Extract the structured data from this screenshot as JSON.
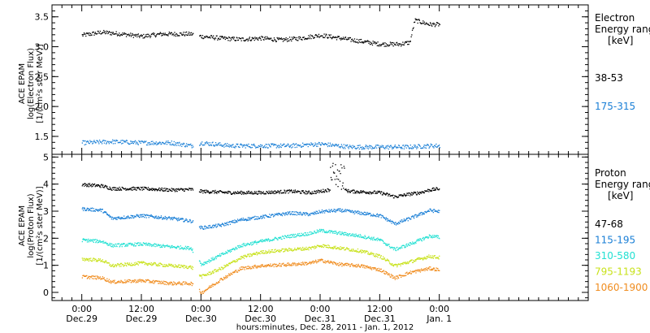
{
  "chart_data": {
    "type": "scatter",
    "x_axis": {
      "label": "hours:minutes, Dec. 28, 2011 - Jan. 1, 2012",
      "range_hours": [
        -6,
        102
      ],
      "ticks": [
        {
          "hours": 0,
          "time": "0:00",
          "date": "Dec.29"
        },
        {
          "hours": 12,
          "time": "12:00",
          "date": "Dec.29"
        },
        {
          "hours": 24,
          "time": "0:00",
          "date": "Dec.30"
        },
        {
          "hours": 36,
          "time": "12:00",
          "date": "Dec.30"
        },
        {
          "hours": 48,
          "time": "0:00",
          "date": "Dec.31"
        },
        {
          "hours": 60,
          "time": "12:00",
          "date": "Dec.31"
        },
        {
          "hours": 72,
          "time": "0:00",
          "date": "Jan. 1"
        }
      ],
      "data_end_hours": 90
    },
    "panels": [
      {
        "name": "electron",
        "ylabel": [
          "ACE EPAM",
          "log(Electron Flux)",
          "[1/(cm²s ster MeV)]"
        ],
        "ylim": [
          1.2,
          3.7
        ],
        "yticks": [
          {
            "value": 1.5,
            "label": "1.5"
          },
          {
            "value": 2.0,
            "label": "2.0"
          },
          {
            "value": 2.5,
            "label": "2.5"
          },
          {
            "value": 3.0,
            "label": "3.0"
          },
          {
            "value": 3.5,
            "label": "3.5"
          }
        ],
        "legend_title": [
          "Electron",
          "Energy ranges",
          "[keV]"
        ],
        "series": [
          {
            "name": "38-53",
            "color": "#000000",
            "knots": [
              [
                0,
                3.2
              ],
              [
                4,
                3.25
              ],
              [
                8,
                3.22
              ],
              [
                12,
                3.18
              ],
              [
                16,
                3.22
              ],
              [
                20,
                3.22
              ],
              [
                22,
                3.22
              ],
              [
                24,
                3.18
              ],
              [
                28,
                3.15
              ],
              [
                32,
                3.13
              ],
              [
                36,
                3.15
              ],
              [
                40,
                3.12
              ],
              [
                44,
                3.15
              ],
              [
                48,
                3.2
              ],
              [
                52,
                3.15
              ],
              [
                56,
                3.1
              ],
              [
                60,
                3.05
              ],
              [
                64,
                3.05
              ],
              [
                66,
                3.08
              ],
              [
                67,
                3.45
              ],
              [
                70,
                3.38
              ]
            ]
          },
          {
            "name": "175-315",
            "color": "#1a7fd6",
            "knots": [
              [
                0,
                1.4
              ],
              [
                6,
                1.42
              ],
              [
                12,
                1.4
              ],
              [
                18,
                1.4
              ],
              [
                22,
                1.35
              ],
              [
                24,
                1.4
              ],
              [
                30,
                1.35
              ],
              [
                36,
                1.35
              ],
              [
                42,
                1.35
              ],
              [
                48,
                1.38
              ],
              [
                54,
                1.33
              ],
              [
                60,
                1.33
              ],
              [
                66,
                1.33
              ],
              [
                70,
                1.35
              ]
            ]
          }
        ]
      },
      {
        "name": "proton",
        "ylabel": [
          "ACE EPAM",
          "log(Proton Flux)",
          "[1/(cm²s ster MeV)]"
        ],
        "ylim": [
          -0.3,
          5.1
        ],
        "yticks": [
          {
            "value": 0,
            "label": "0"
          },
          {
            "value": 1,
            "label": "1"
          },
          {
            "value": 2,
            "label": "2"
          },
          {
            "value": 3,
            "label": "3"
          },
          {
            "value": 4,
            "label": "4"
          },
          {
            "value": 5,
            "label": "5"
          }
        ],
        "legend_title": [
          "Proton",
          "Energy ranges",
          "[keV]"
        ],
        "series": [
          {
            "name": "47-68",
            "color": "#000000",
            "knots": [
              [
                0,
                4.0
              ],
              [
                4,
                3.95
              ],
              [
                6,
                3.85
              ],
              [
                12,
                3.85
              ],
              [
                18,
                3.8
              ],
              [
                22,
                3.82
              ],
              [
                24,
                3.75
              ],
              [
                30,
                3.7
              ],
              [
                36,
                3.7
              ],
              [
                42,
                3.75
              ],
              [
                46,
                3.7
              ],
              [
                48,
                3.75
              ],
              [
                51,
                3.85
              ],
              [
                54,
                3.75
              ],
              [
                60,
                3.7
              ],
              [
                63,
                3.55
              ],
              [
                66,
                3.65
              ],
              [
                68,
                3.7
              ],
              [
                70,
                3.8
              ],
              [
                72,
                3.85
              ]
            ]
          },
          {
            "name": "115-195",
            "color": "#1a7fd6",
            "knots": [
              [
                0,
                3.1
              ],
              [
                4,
                3.05
              ],
              [
                6,
                2.75
              ],
              [
                12,
                2.85
              ],
              [
                18,
                2.75
              ],
              [
                22,
                2.65
              ],
              [
                24,
                2.4
              ],
              [
                28,
                2.5
              ],
              [
                32,
                2.7
              ],
              [
                36,
                2.8
              ],
              [
                42,
                2.95
              ],
              [
                46,
                2.9
              ],
              [
                48,
                3.0
              ],
              [
                52,
                3.05
              ],
              [
                56,
                2.95
              ],
              [
                60,
                2.85
              ],
              [
                63,
                2.55
              ],
              [
                66,
                2.75
              ],
              [
                70,
                3.05
              ],
              [
                72,
                3.0
              ]
            ]
          },
          {
            "name": "310-580",
            "color": "#22e0d2",
            "knots": [
              [
                0,
                1.95
              ],
              [
                4,
                1.9
              ],
              [
                6,
                1.75
              ],
              [
                12,
                1.8
              ],
              [
                18,
                1.7
              ],
              [
                22,
                1.65
              ],
              [
                24,
                1.05
              ],
              [
                28,
                1.4
              ],
              [
                32,
                1.75
              ],
              [
                36,
                1.9
              ],
              [
                42,
                2.1
              ],
              [
                46,
                2.2
              ],
              [
                48,
                2.3
              ],
              [
                52,
                2.2
              ],
              [
                56,
                2.1
              ],
              [
                60,
                1.95
              ],
              [
                63,
                1.6
              ],
              [
                66,
                1.8
              ],
              [
                70,
                2.1
              ],
              [
                72,
                2.05
              ]
            ]
          },
          {
            "name": "795-1193",
            "color": "#c8e21a",
            "knots": [
              [
                0,
                1.25
              ],
              [
                4,
                1.2
              ],
              [
                6,
                1.0
              ],
              [
                12,
                1.1
              ],
              [
                18,
                1.0
              ],
              [
                22,
                0.95
              ],
              [
                24,
                0.6
              ],
              [
                28,
                0.9
              ],
              [
                32,
                1.3
              ],
              [
                36,
                1.5
              ],
              [
                42,
                1.6
              ],
              [
                46,
                1.65
              ],
              [
                48,
                1.75
              ],
              [
                52,
                1.65
              ],
              [
                56,
                1.55
              ],
              [
                60,
                1.35
              ],
              [
                63,
                1.0
              ],
              [
                66,
                1.15
              ],
              [
                70,
                1.35
              ],
              [
                72,
                1.3
              ]
            ]
          },
          {
            "name": "1060-1900",
            "color": "#f08c1e",
            "knots": [
              [
                0,
                0.6
              ],
              [
                4,
                0.55
              ],
              [
                6,
                0.4
              ],
              [
                12,
                0.45
              ],
              [
                18,
                0.35
              ],
              [
                22,
                0.35
              ],
              [
                24,
                0.0
              ],
              [
                28,
                0.5
              ],
              [
                32,
                0.9
              ],
              [
                36,
                1.0
              ],
              [
                42,
                1.05
              ],
              [
                46,
                1.1
              ],
              [
                48,
                1.2
              ],
              [
                52,
                1.05
              ],
              [
                56,
                1.0
              ],
              [
                60,
                0.85
              ],
              [
                63,
                0.55
              ],
              [
                66,
                0.75
              ],
              [
                70,
                0.9
              ],
              [
                72,
                0.85
              ]
            ]
          }
        ]
      }
    ]
  }
}
